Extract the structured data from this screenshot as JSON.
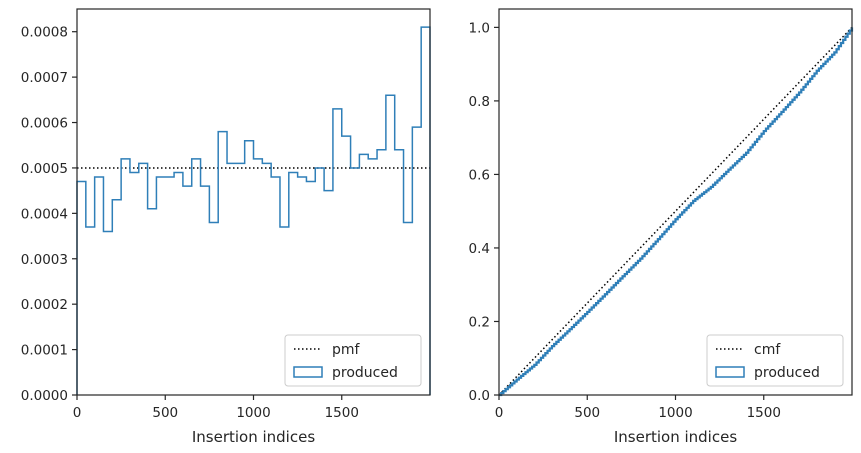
{
  "chart_data": [
    {
      "type": "histogram-step",
      "xlabel": "Insertion indices",
      "xlim": [
        0,
        2000
      ],
      "ylim": [
        0,
        0.00085
      ],
      "xticks": [
        0,
        500,
        1000,
        1500
      ],
      "xtick_labels": [
        "0",
        "500",
        "1000",
        "1500"
      ],
      "yticks": [
        0,
        0.0001,
        0.0002,
        0.0003,
        0.0004,
        0.0005,
        0.0006,
        0.0007,
        0.0008
      ],
      "ytick_labels": [
        "0.0000",
        "0.0001",
        "0.0002",
        "0.0003",
        "0.0004",
        "0.0005",
        "0.0006",
        "0.0007",
        "0.0008"
      ],
      "grid": false,
      "legend_position": "bottom-right",
      "series": [
        {
          "name": "pmf",
          "kind": "reference-line",
          "style": "dotted",
          "color": "#000000",
          "y": 0.0005
        },
        {
          "name": "produced",
          "kind": "step",
          "color": "#2f7fb8",
          "bin_edges": [
            0,
            50,
            100,
            150,
            200,
            250,
            300,
            350,
            400,
            450,
            500,
            550,
            600,
            650,
            700,
            750,
            800,
            850,
            900,
            950,
            1000,
            1050,
            1100,
            1150,
            1200,
            1250,
            1300,
            1350,
            1400,
            1450,
            1500,
            1550,
            1600,
            1650,
            1700,
            1750,
            1800,
            1850,
            1900,
            1950,
            2000
          ],
          "values": [
            0.00047,
            0.00037,
            0.00048,
            0.00036,
            0.00043,
            0.00052,
            0.00049,
            0.00051,
            0.00041,
            0.00048,
            0.00048,
            0.00049,
            0.00046,
            0.00052,
            0.00046,
            0.00038,
            0.00058,
            0.00051,
            0.00051,
            0.00056,
            0.00052,
            0.00051,
            0.00048,
            0.00037,
            0.00049,
            0.00048,
            0.00047,
            0.0005,
            0.00045,
            0.00063,
            0.00057,
            0.0005,
            0.00053,
            0.00052,
            0.00054,
            0.00066,
            0.00054,
            0.00038,
            0.00059,
            0.00081
          ]
        }
      ]
    },
    {
      "type": "line",
      "xlabel": "Insertion indices",
      "xlim": [
        0,
        2000
      ],
      "ylim": [
        0,
        1.05
      ],
      "xticks": [
        0,
        500,
        1000,
        1500
      ],
      "xtick_labels": [
        "0",
        "500",
        "1000",
        "1500"
      ],
      "yticks": [
        0,
        0.2,
        0.4,
        0.6,
        0.8,
        1.0
      ],
      "ytick_labels": [
        "0.0",
        "0.2",
        "0.4",
        "0.6",
        "0.8",
        "1.0"
      ],
      "grid": false,
      "legend_position": "bottom-right",
      "series": [
        {
          "name": "cmf",
          "kind": "reference-line",
          "style": "dotted",
          "color": "#000000",
          "x": [
            0,
            2000
          ],
          "y": [
            0,
            1.0
          ]
        },
        {
          "name": "produced",
          "kind": "step",
          "color": "#2f7fb8",
          "x": [
            0,
            100,
            200,
            300,
            400,
            500,
            600,
            700,
            800,
            900,
            1000,
            1100,
            1200,
            1300,
            1400,
            1500,
            1600,
            1700,
            1800,
            1900,
            2000
          ],
          "y": [
            0,
            0.042,
            0.082,
            0.133,
            0.179,
            0.226,
            0.274,
            0.323,
            0.371,
            0.424,
            0.478,
            0.528,
            0.566,
            0.613,
            0.659,
            0.718,
            0.77,
            0.823,
            0.882,
            0.932,
            1.0
          ]
        }
      ]
    }
  ]
}
